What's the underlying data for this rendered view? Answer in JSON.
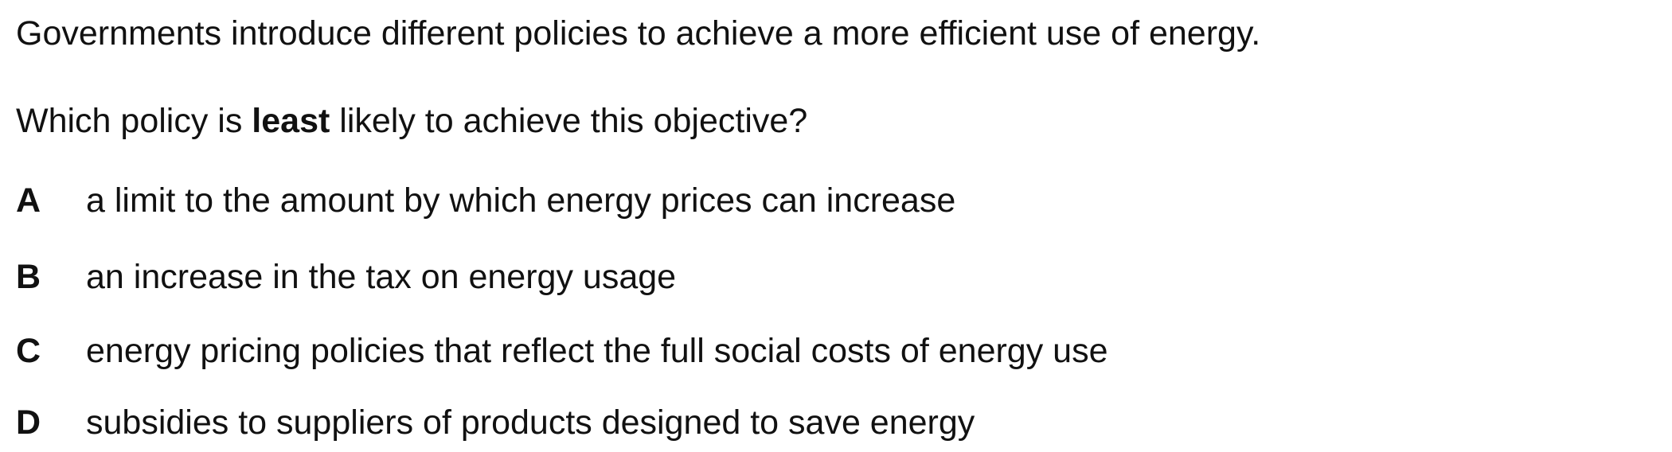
{
  "question": {
    "intro": "Governments introduce different policies to achieve a more efficient use of energy.",
    "stem_before": "Which policy is ",
    "stem_emphasis": "least",
    "stem_after": " likely to achieve this objective?"
  },
  "options": [
    {
      "letter": "A",
      "text": "a limit to the amount by which energy prices can increase"
    },
    {
      "letter": "B",
      "text": "an increase in the tax on energy usage"
    },
    {
      "letter": "C",
      "text": "energy pricing policies that reflect the full social costs of energy use"
    },
    {
      "letter": "D",
      "text": "subsidies to suppliers of products designed to save energy"
    }
  ]
}
